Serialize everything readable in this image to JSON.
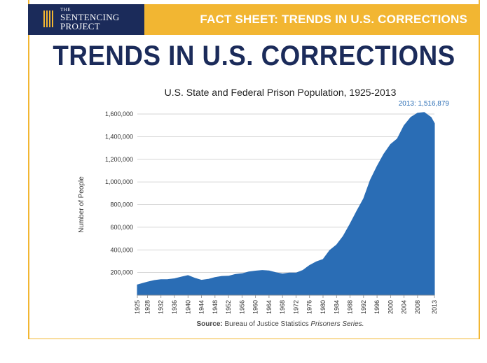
{
  "header": {
    "logo_the": "THE",
    "logo_line1": "SENTENCING",
    "logo_line2": "PROJECT",
    "fact_sheet_label": "FACT SHEET: TRENDS IN U.S. CORRECTIONS"
  },
  "main_title": "TRENDS IN U.S. CORRECTIONS",
  "source": {
    "prefix": "Source:",
    "text": " Bureau of Justice Statistics ",
    "italic": "Prisoners Series."
  },
  "colors": {
    "navy": "#1b2b5a",
    "gold": "#f2b632",
    "area": "#2a6db5",
    "annotation": "#2a6db5"
  },
  "chart_data": {
    "type": "area",
    "title": "U.S. State and Federal Prison Population, 1925-2013",
    "xlabel": "",
    "ylabel": "Number of People",
    "ylim": [
      0,
      1600000
    ],
    "xlim": [
      1925,
      2013
    ],
    "grid": "horizontal",
    "yticks": [
      200000,
      400000,
      600000,
      800000,
      1000000,
      1200000,
      1400000,
      1600000
    ],
    "ytick_labels": [
      "200,000",
      "400,000",
      "600,000",
      "800,000",
      "1,000,000",
      "1,200,000",
      "1,400,000",
      "1,600,000"
    ],
    "xticks": [
      1925,
      1928,
      1932,
      1936,
      1940,
      1944,
      1948,
      1952,
      1956,
      1960,
      1964,
      1968,
      1972,
      1976,
      1980,
      1984,
      1988,
      1992,
      1996,
      2000,
      2004,
      2008,
      2013
    ],
    "xtick_labels": [
      "1925",
      "1928",
      "1932",
      "1936",
      "1940",
      "1944",
      "1948",
      "1952",
      "1956",
      "1960",
      "1964",
      "1968",
      "1972",
      "1976",
      "1980",
      "1984",
      "1988",
      "1992",
      "1996",
      "2000",
      "2004",
      "2008",
      "2013"
    ],
    "x": [
      1925,
      1928,
      1930,
      1932,
      1934,
      1936,
      1938,
      1940,
      1942,
      1944,
      1946,
      1948,
      1950,
      1952,
      1954,
      1956,
      1958,
      1960,
      1962,
      1964,
      1966,
      1968,
      1970,
      1972,
      1974,
      1976,
      1978,
      1980,
      1982,
      1984,
      1986,
      1988,
      1990,
      1992,
      1994,
      1996,
      1998,
      2000,
      2002,
      2004,
      2006,
      2008,
      2010,
      2012,
      2013
    ],
    "values": [
      91669,
      116390,
      129453,
      137997,
      138316,
      145038,
      160285,
      173706,
      150384,
      132456,
      140079,
      155977,
      166123,
      168233,
      182901,
      189565,
      205643,
      212953,
      218830,
      214336,
      199654,
      187914,
      196429,
      196092,
      218466,
      262833,
      294396,
      315974,
      395516,
      443398,
      522084,
      627402,
      743382,
      850566,
      1016760,
      1137722,
      1245402,
      1331278,
      1380516,
      1496629,
      1570861,
      1608282,
      1613803,
      1570397,
      1516879
    ],
    "annotations": [
      {
        "text": "2013: 1,516,879",
        "x": 2013,
        "y": 1516879
      }
    ]
  }
}
